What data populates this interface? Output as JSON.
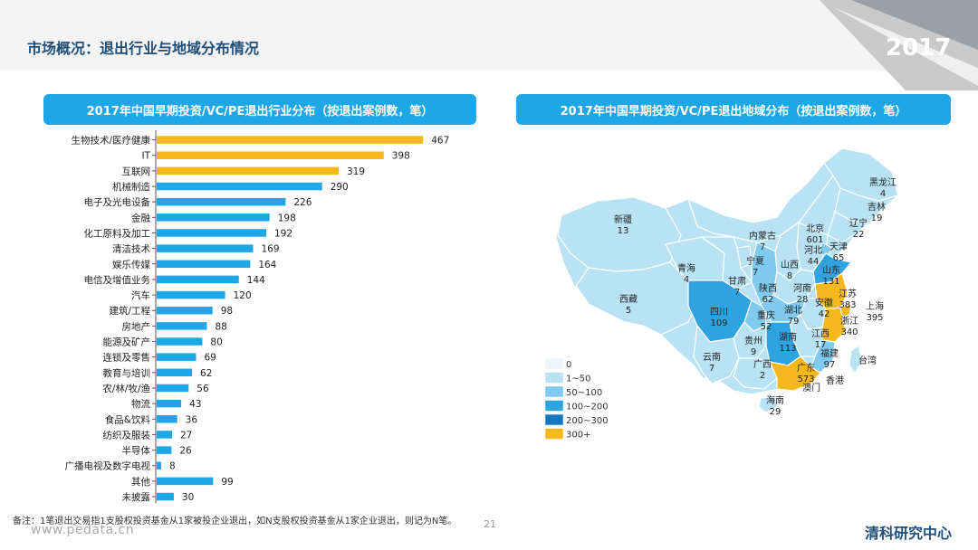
{
  "header": {
    "title": "市场概况：退出行业与地域分布情况",
    "year": "2017"
  },
  "colors": {
    "accent": "#1ea7e6",
    "bar_yellow": "#f5b81f",
    "bar_blue": "#1ea7e6",
    "title_blue": "#1f4e79"
  },
  "chart_data": [
    {
      "type": "bar",
      "orientation": "horizontal",
      "title": "2017年中国早期投资/VC/PE退出行业分布（按退出案例数，笔）",
      "categories": [
        "生物技术/医疗健康",
        "IT",
        "互联网",
        "机械制造",
        "电子及光电设备",
        "金融",
        "化工原料及加工",
        "清洁技术",
        "娱乐传媒",
        "电信及增值业务",
        "汽车",
        "建筑/工程",
        "房地产",
        "能源及矿产",
        "连锁及零售",
        "教育与培训",
        "农/林/牧/渔",
        "物流",
        "食品&饮料",
        "纺织及服装",
        "半导体",
        "广播电视及数字电视",
        "其他",
        "未披露"
      ],
      "values": [
        467,
        398,
        319,
        290,
        226,
        198,
        192,
        169,
        164,
        144,
        120,
        98,
        88,
        80,
        69,
        62,
        56,
        43,
        36,
        27,
        26,
        8,
        99,
        30
      ],
      "highlight_top": 3,
      "xlim": [
        0,
        500
      ]
    },
    {
      "type": "map",
      "title": "2017年中国早期投资/VC/PE退出地域分布（按退出案例数，笔）",
      "legend": [
        {
          "label": "0",
          "color": "#eaf6fc"
        },
        {
          "label": "1~50",
          "color": "#b9e2f5"
        },
        {
          "label": "50~100",
          "color": "#7fcaee"
        },
        {
          "label": "100~200",
          "color": "#2fa3df"
        },
        {
          "label": "200~300",
          "color": "#1478bd"
        },
        {
          "label": "300+",
          "color": "#f5b81f"
        }
      ],
      "regions": [
        {
          "name": "黑龙江",
          "value": "4"
        },
        {
          "name": "吉林",
          "value": "19"
        },
        {
          "name": "辽宁",
          "value": "22"
        },
        {
          "name": "新疆",
          "value": "13"
        },
        {
          "name": "内蒙古",
          "value": "7"
        },
        {
          "name": "北京",
          "value": "601"
        },
        {
          "name": "河北",
          "value": "44"
        },
        {
          "name": "天津",
          "value": "65"
        },
        {
          "name": "山西",
          "value": "8"
        },
        {
          "name": "山东",
          "value": "131"
        },
        {
          "name": "宁夏",
          "value": "7"
        },
        {
          "name": "青海",
          "value": "4"
        },
        {
          "name": "甘肃",
          "value": "7"
        },
        {
          "name": "陕西",
          "value": "62"
        },
        {
          "name": "河南",
          "value": "28"
        },
        {
          "name": "江苏",
          "value": "383"
        },
        {
          "name": "上海",
          "value": "395"
        },
        {
          "name": "安徽",
          "value": "42"
        },
        {
          "name": "西藏",
          "value": "5"
        },
        {
          "name": "四川",
          "value": "109"
        },
        {
          "name": "重庆",
          "value": "52"
        },
        {
          "name": "湖北",
          "value": "79"
        },
        {
          "name": "浙江",
          "value": "340"
        },
        {
          "name": "湖南",
          "value": "113"
        },
        {
          "name": "江西",
          "value": "17"
        },
        {
          "name": "贵州",
          "value": "9"
        },
        {
          "name": "福建",
          "value": "97"
        },
        {
          "name": "云南",
          "value": "7"
        },
        {
          "name": "广西",
          "value": "2"
        },
        {
          "name": "广东",
          "value": "573"
        },
        {
          "name": "台湾",
          "value": ""
        },
        {
          "name": "香港",
          "value": ""
        },
        {
          "name": "澳门",
          "value": ""
        },
        {
          "name": "海南",
          "value": "29"
        }
      ]
    }
  ],
  "footer": {
    "note": "备注：1笔退出交易指1支股权投资基金从1家被投企业退出，如N支股权投资基金从1家企业退出，则记为N笔。",
    "page": "21",
    "website": "www.pedata.cn",
    "brand": "清科研究中心"
  }
}
